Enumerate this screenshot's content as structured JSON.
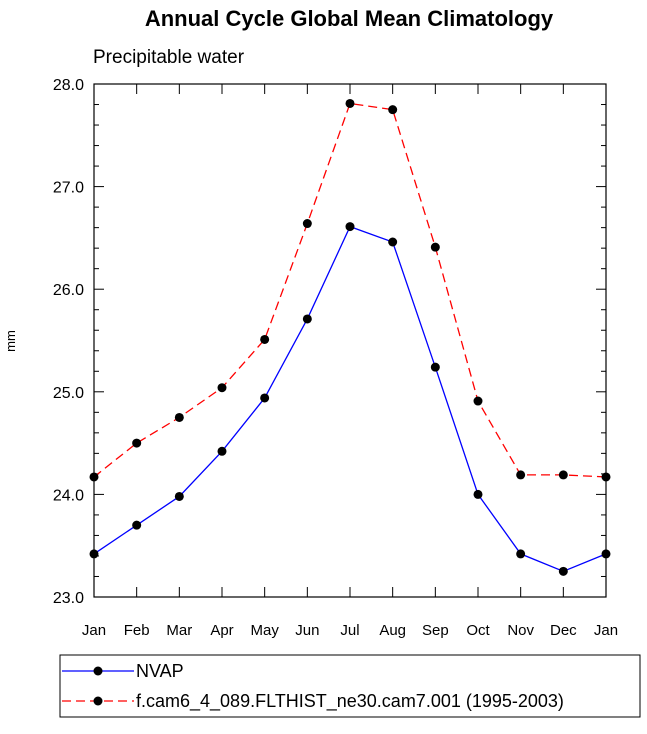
{
  "chart_data": {
    "type": "line",
    "title": "Annual Cycle Global Mean Climatology",
    "subtitle": "Precipitable water",
    "ylabel": "mm",
    "xlabel": "",
    "categories": [
      "Jan",
      "Feb",
      "Mar",
      "Apr",
      "May",
      "Jun",
      "Jul",
      "Aug",
      "Sep",
      "Oct",
      "Nov",
      "Dec",
      "Jan"
    ],
    "ylim": [
      23.0,
      28.0
    ],
    "yticks": [
      "23.0",
      "24.0",
      "25.0",
      "26.0",
      "27.0",
      "28.0"
    ],
    "grid": false,
    "legend_position": "bottom",
    "series": [
      {
        "name": "NVAP",
        "color": "#0000ff",
        "dash": "solid",
        "values": [
          23.42,
          23.7,
          23.98,
          24.42,
          24.94,
          25.71,
          26.61,
          26.46,
          25.24,
          24.0,
          23.42,
          23.25,
          23.42
        ]
      },
      {
        "name": "f.cam6_4_089.FLTHIST_ne30.cam7.001 (1995-2003)",
        "color": "#ff0000",
        "dash": "dashed",
        "values": [
          24.17,
          24.5,
          24.75,
          25.04,
          25.51,
          26.64,
          27.81,
          27.75,
          26.41,
          24.91,
          24.19,
          24.19,
          24.17
        ]
      }
    ]
  }
}
